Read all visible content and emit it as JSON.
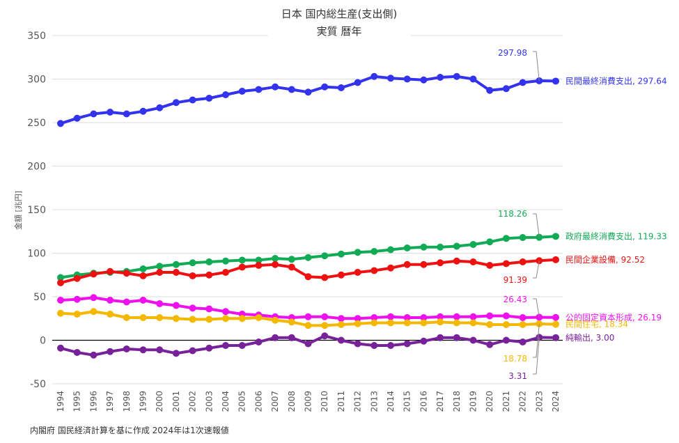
{
  "chart_data": {
    "type": "line",
    "title": "日本 国内総生産(支出側)",
    "subtitle": "実質 暦年",
    "ylabel": "金額 [兆円]",
    "ylim": [
      -50,
      350
    ],
    "yticks": [
      -50,
      0,
      50,
      100,
      150,
      200,
      250,
      300,
      350
    ],
    "grid": true,
    "x": [
      1994,
      1995,
      1996,
      1997,
      1998,
      1999,
      2000,
      2001,
      2002,
      2003,
      2004,
      2005,
      2006,
      2007,
      2008,
      2009,
      2010,
      2011,
      2012,
      2013,
      2014,
      2015,
      2016,
      2017,
      2018,
      2019,
      2020,
      2021,
      2022,
      2023,
      2024
    ],
    "series": [
      {
        "name": "民間最終消費支出",
        "color": "#3333ee",
        "end_label": "民間最終消費支出, 297.64",
        "values": [
          249,
          255,
          260,
          262,
          260,
          263,
          267,
          273,
          276,
          278,
          282,
          286,
          288,
          291,
          288,
          285,
          291,
          290,
          296,
          303,
          301,
          300,
          299,
          302,
          303,
          300,
          287,
          289,
          296,
          297.98,
          297.64
        ]
      },
      {
        "name": "政府最終消費支出",
        "color": "#11aa55",
        "end_label": "政府最終消費支出, 119.33",
        "values": [
          72,
          75,
          77,
          78,
          79,
          82,
          85,
          87,
          89,
          90,
          91,
          92,
          92,
          94,
          93,
          95,
          97,
          99,
          101,
          102,
          104,
          106,
          107,
          107,
          108,
          110,
          113,
          117,
          118,
          118.26,
          119.33
        ]
      },
      {
        "name": "民間企業設備",
        "color": "#ee1111",
        "end_label": "民間企業設備, 92.52",
        "values": [
          66,
          71,
          76,
          79,
          77,
          74,
          78,
          78,
          74,
          75,
          78,
          84,
          86,
          87,
          84,
          73,
          72,
          75,
          78,
          80,
          83,
          87,
          87,
          89,
          91,
          90,
          86,
          88,
          90,
          91.39,
          92.52
        ]
      },
      {
        "name": "公的固定資本形成",
        "color": "#ee11ee",
        "end_label": "公的固定資本形成, 26.19",
        "values": [
          46,
          47,
          49,
          46,
          44,
          46,
          42,
          40,
          37,
          36,
          33,
          30,
          29,
          27,
          26,
          27,
          27,
          25,
          25,
          26,
          27,
          26,
          26,
          27,
          27,
          27,
          28,
          28,
          26,
          26.43,
          26.19
        ]
      },
      {
        "name": "民間住宅",
        "color": "#f5b800",
        "end_label": "民間住宅, 18.34",
        "values": [
          31,
          30,
          33,
          30,
          26,
          26,
          26,
          25,
          24,
          24,
          25,
          25,
          26,
          23,
          21,
          17,
          17,
          18,
          19,
          20,
          20,
          20,
          20,
          21,
          20,
          20,
          18,
          18,
          18,
          18.78,
          18.34
        ]
      },
      {
        "name": "純輸出",
        "color": "#772299",
        "end_label": "純輸出, 3.00",
        "values": [
          -9,
          -14,
          -17,
          -13,
          -10,
          -11,
          -11,
          -15,
          -12,
          -9,
          -6,
          -6,
          -2,
          3,
          3,
          -4,
          5,
          0,
          -4,
          -6,
          -6,
          -4,
          -1,
          3,
          3,
          0,
          -5,
          0,
          -2,
          3.31,
          3.0
        ]
      }
    ],
    "callouts": [
      {
        "text": "297.98",
        "color": "#3333ee",
        "series": 0
      },
      {
        "text": "118.26",
        "color": "#11aa55",
        "series": 1
      },
      {
        "text": "91.39",
        "color": "#ee1111",
        "series": 2
      },
      {
        "text": "26.43",
        "color": "#ee11ee",
        "series": 3
      },
      {
        "text": "18.78",
        "color": "#f5b800",
        "series": 4
      },
      {
        "text": "3.31",
        "color": "#772299",
        "series": 5
      }
    ],
    "source_note": "内閣府 国民経済計算を基に作成 2024年は1次速報値"
  }
}
